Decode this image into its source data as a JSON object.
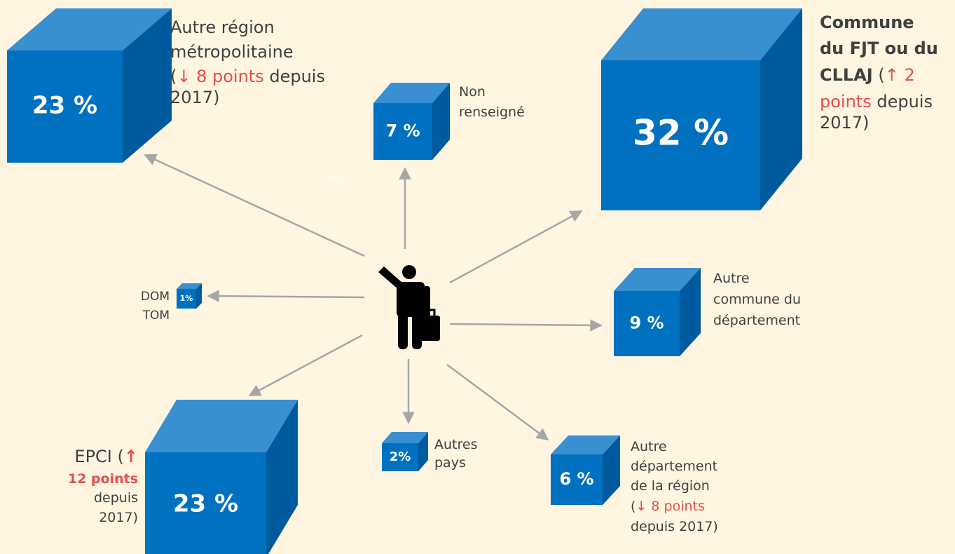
{
  "nodes": [
    {
      "value": "23 %",
      "caption": [
        [
          {
            "text": "Autre région"
          }
        ],
        [
          {
            "text": "métropolitaine"
          }
        ],
        [
          {
            "text": "("
          },
          {
            "text": "↓ 8 points",
            "color": "#e84c4c"
          },
          {
            "text": " depuis"
          }
        ],
        [
          {
            "text": "2017)"
          }
        ]
      ]
    },
    {
      "value": "7 %",
      "caption": [
        [
          {
            "text": "Non"
          }
        ],
        [
          {
            "text": "renseigné"
          }
        ]
      ]
    },
    {
      "value": "32 %",
      "caption": [
        [
          {
            "text": "Commune",
            "bold": true
          }
        ],
        [
          {
            "text": "du FJT ou du",
            "bold": true
          }
        ],
        [
          {
            "text": "CLLAJ",
            "bold": true
          },
          {
            "text": " ("
          },
          {
            "text": "↑ 2",
            "color": "#e84c4c"
          }
        ],
        [
          {
            "text": "points",
            "color": "#e84c4c"
          },
          {
            "text": " depuis"
          }
        ],
        [
          {
            "text": "2017)"
          }
        ]
      ]
    },
    {
      "value": "9 %",
      "caption": [
        [
          {
            "text": "Autre"
          }
        ],
        [
          {
            "text": "commune du"
          }
        ],
        [
          {
            "text": "département"
          }
        ]
      ]
    },
    {
      "value": "1%",
      "caption": [
        [
          {
            "text": "DOM"
          }
        ],
        [
          {
            "text": "TOM"
          }
        ]
      ]
    },
    {
      "value": "23 %",
      "caption": [
        [
          {
            "text": "EPCI"
          },
          {
            "text": " ("
          },
          {
            "text": "↑",
            "color": "#e84c4c",
            "bold": true
          }
        ],
        [
          {
            "text": "12 points",
            "color": "#e84c4c",
            "bold": true
          }
        ],
        [
          {
            "text": "depuis"
          }
        ],
        [
          {
            "text": "2017)"
          }
        ]
      ]
    },
    {
      "value": "2%",
      "caption": [
        [
          {
            "text": "Autres"
          }
        ],
        [
          {
            "text": "pays"
          }
        ]
      ]
    },
    {
      "value": "6 %",
      "caption": [
        [
          {
            "text": "Autre"
          }
        ],
        [
          {
            "text": "département"
          }
        ],
        [
          {
            "text": "de la région"
          }
        ],
        [
          {
            "text": "("
          },
          {
            "text": "↓ 8 points",
            "color": "#e84c4c"
          }
        ],
        [
          {
            "text": "depuis 2017)"
          }
        ]
      ]
    }
  ],
  "ghost_label": "7%"
}
